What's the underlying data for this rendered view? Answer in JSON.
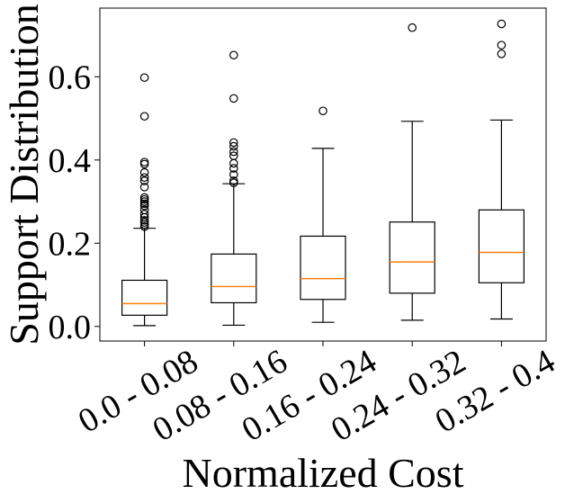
{
  "chart_data": {
    "type": "boxplot",
    "title": "",
    "xlabel": "Normalized Cost",
    "ylabel": "Support Distribution",
    "ylim": [
      -0.035,
      0.765
    ],
    "yticks": [
      0.0,
      0.2,
      0.4,
      0.6
    ],
    "ytick_labels": [
      "0.0",
      "0.2",
      "0.4",
      "0.6"
    ],
    "categories": [
      "0.0 - 0.08",
      "0.08 - 0.16",
      "0.16 - 0.24",
      "0.24 - 0.32",
      "0.32 - 0.4"
    ],
    "median_color": "#ff7f0e",
    "box_color": "#000000",
    "series": [
      {
        "category": "0.0 - 0.08",
        "whisker_low": 0.002,
        "q1": 0.027,
        "median": 0.055,
        "q3": 0.111,
        "whisker_high": 0.236,
        "outliers": [
          0.598,
          0.505,
          0.395,
          0.39,
          0.37,
          0.358,
          0.35,
          0.335,
          0.31,
          0.305,
          0.3,
          0.295,
          0.29,
          0.28,
          0.27,
          0.262,
          0.255,
          0.25,
          0.245,
          0.24
        ]
      },
      {
        "category": "0.08 - 0.16",
        "whisker_low": 0.003,
        "q1": 0.057,
        "median": 0.096,
        "q3": 0.174,
        "whisker_high": 0.343,
        "outliers": [
          0.652,
          0.548,
          0.442,
          0.433,
          0.42,
          0.41,
          0.392,
          0.38,
          0.365,
          0.35,
          0.345
        ]
      },
      {
        "category": "0.16 - 0.24",
        "whisker_low": 0.01,
        "q1": 0.065,
        "median": 0.115,
        "q3": 0.217,
        "whisker_high": 0.428,
        "outliers": [
          0.518
        ]
      },
      {
        "category": "0.24 - 0.32",
        "whisker_low": 0.015,
        "q1": 0.08,
        "median": 0.155,
        "q3": 0.251,
        "whisker_high": 0.493,
        "outliers": [
          0.718
        ]
      },
      {
        "category": "0.32 - 0.4",
        "whisker_low": 0.018,
        "q1": 0.105,
        "median": 0.178,
        "q3": 0.28,
        "whisker_high": 0.496,
        "outliers": [
          0.727,
          0.676,
          0.655
        ]
      }
    ]
  }
}
